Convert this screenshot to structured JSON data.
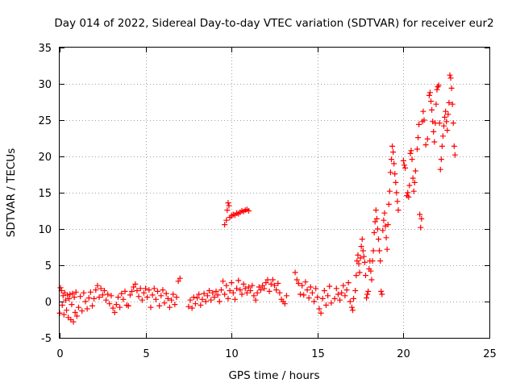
{
  "chart_data": {
    "type": "scatter",
    "title": "Day 014 of 2022, Sidereal Day-to-day VTEC variation (SDTVAR) for receiver eur2",
    "xlabel": "GPS time / hours",
    "ylabel": "SDTVAR / TECUs",
    "xlim": [
      0,
      25
    ],
    "ylim": [
      -5,
      35
    ],
    "xticks": [
      0,
      5,
      10,
      15,
      20,
      25
    ],
    "yticks": [
      -5,
      0,
      5,
      10,
      15,
      20,
      25,
      30,
      35
    ],
    "grid": true,
    "marker": "+",
    "marker_color": "#ff0000",
    "series": [
      {
        "name": "SDTVAR",
        "points": [
          [
            0.0,
            -1.6
          ],
          [
            0.05,
            1.9
          ],
          [
            0.1,
            1.5
          ],
          [
            0.15,
            -0.5
          ],
          [
            0.2,
            0.8
          ],
          [
            0.25,
            -1.8
          ],
          [
            0.3,
            1.2
          ],
          [
            0.35,
            0.2
          ],
          [
            0.4,
            -1.2
          ],
          [
            0.45,
            0.9
          ],
          [
            0.5,
            -2.2
          ],
          [
            0.55,
            0.4
          ],
          [
            0.6,
            1.0
          ],
          [
            0.65,
            -2.5
          ],
          [
            0.7,
            -0.4
          ],
          [
            0.75,
            1.1
          ],
          [
            0.8,
            -2.8
          ],
          [
            0.85,
            0.6
          ],
          [
            0.9,
            -1.5
          ],
          [
            0.95,
            1.3
          ],
          [
            1.0,
            -2.0
          ],
          [
            1.1,
            -0.8
          ],
          [
            1.2,
            0.7
          ],
          [
            1.3,
            -1.3
          ],
          [
            1.4,
            1.2
          ],
          [
            1.5,
            0.0
          ],
          [
            1.6,
            -1.0
          ],
          [
            1.7,
            0.5
          ],
          [
            1.8,
            1.3
          ],
          [
            1.9,
            -0.6
          ],
          [
            2.0,
            0.4
          ],
          [
            2.1,
            1.6
          ],
          [
            2.2,
            2.2
          ],
          [
            2.3,
            0.6
          ],
          [
            2.4,
            1.8
          ],
          [
            2.5,
            0.9
          ],
          [
            2.6,
            1.5
          ],
          [
            2.7,
            0.2
          ],
          [
            2.8,
            1.0
          ],
          [
            2.9,
            -0.3
          ],
          [
            3.0,
            0.8
          ],
          [
            3.1,
            -0.9
          ],
          [
            3.2,
            -1.5
          ],
          [
            3.3,
            -0.4
          ],
          [
            3.4,
            0.6
          ],
          [
            3.5,
            -0.8
          ],
          [
            3.6,
            1.1
          ],
          [
            3.7,
            0.3
          ],
          [
            3.8,
            1.4
          ],
          [
            3.9,
            -0.5
          ],
          [
            4.0,
            -0.6
          ],
          [
            4.1,
            0.9
          ],
          [
            4.2,
            1.4
          ],
          [
            4.3,
            2.0
          ],
          [
            4.4,
            2.4
          ],
          [
            4.5,
            1.5
          ],
          [
            4.6,
            0.7
          ],
          [
            4.7,
            1.8
          ],
          [
            4.8,
            0.2
          ],
          [
            4.9,
            1.2
          ],
          [
            5.0,
            1.8
          ],
          [
            5.1,
            0.6
          ],
          [
            5.2,
            1.6
          ],
          [
            5.3,
            -0.8
          ],
          [
            5.4,
            0.9
          ],
          [
            5.5,
            1.8
          ],
          [
            5.6,
            0.3
          ],
          [
            5.7,
            1.4
          ],
          [
            5.8,
            -0.6
          ],
          [
            5.9,
            0.8
          ],
          [
            6.0,
            1.6
          ],
          [
            6.1,
            -0.2
          ],
          [
            6.2,
            1.1
          ],
          [
            6.3,
            0.4
          ],
          [
            6.4,
            -0.8
          ],
          [
            6.5,
            0.2
          ],
          [
            6.6,
            1.0
          ],
          [
            6.7,
            -0.4
          ],
          [
            6.8,
            0.6
          ],
          [
            6.9,
            2.8
          ],
          [
            7.0,
            3.2
          ],
          [
            7.5,
            -0.7
          ],
          [
            7.6,
            0.2
          ],
          [
            7.7,
            -0.9
          ],
          [
            7.8,
            0.6
          ],
          [
            7.9,
            -0.3
          ],
          [
            8.0,
            0.5
          ],
          [
            8.1,
            1.0
          ],
          [
            8.2,
            -0.5
          ],
          [
            8.3,
            0.3
          ],
          [
            8.4,
            1.1
          ],
          [
            8.5,
            0.0
          ],
          [
            8.6,
            0.8
          ],
          [
            8.7,
            1.5
          ],
          [
            8.8,
            0.2
          ],
          [
            8.9,
            1.2
          ],
          [
            9.0,
            0.6
          ],
          [
            9.1,
            1.4
          ],
          [
            9.2,
            0.9
          ],
          [
            9.3,
            0.0
          ],
          [
            9.4,
            1.6
          ],
          [
            9.5,
            2.8
          ],
          [
            9.6,
            1.0
          ],
          [
            9.7,
            2.2
          ],
          [
            9.8,
            0.4
          ],
          [
            9.9,
            1.5
          ],
          [
            10.0,
            2.6
          ],
          [
            10.1,
            1.2
          ],
          [
            10.2,
            0.3
          ],
          [
            10.3,
            1.8
          ],
          [
            10.4,
            2.9
          ],
          [
            10.5,
            1.6
          ],
          [
            10.6,
            1.0
          ],
          [
            10.7,
            2.4
          ],
          [
            10.8,
            1.8
          ],
          [
            10.9,
            1.2
          ],
          [
            11.0,
            2.0
          ],
          [
            11.1,
            1.5
          ],
          [
            11.2,
            2.2
          ],
          [
            11.3,
            0.8
          ],
          [
            11.4,
            0.2
          ],
          [
            11.5,
            1.2
          ],
          [
            11.6,
            2.0
          ],
          [
            11.7,
            1.6
          ],
          [
            11.8,
            2.2
          ],
          [
            11.9,
            1.8
          ],
          [
            12.0,
            2.6
          ],
          [
            12.1,
            3.0
          ],
          [
            12.2,
            1.4
          ],
          [
            12.3,
            2.4
          ],
          [
            12.4,
            3.0
          ],
          [
            12.5,
            2.2
          ],
          [
            12.6,
            1.6
          ],
          [
            12.7,
            2.5
          ],
          [
            12.8,
            1.2
          ],
          [
            12.9,
            0.3
          ],
          [
            13.0,
            0.0
          ],
          [
            13.1,
            -0.3
          ],
          [
            13.2,
            0.8
          ],
          [
            9.6,
            10.6
          ],
          [
            9.7,
            11.2
          ],
          [
            9.75,
            12.6
          ],
          [
            9.8,
            13.6
          ],
          [
            9.85,
            13.2
          ],
          [
            9.9,
            11.6
          ],
          [
            10.0,
            11.8
          ],
          [
            10.1,
            12.0
          ],
          [
            10.2,
            11.9
          ],
          [
            10.3,
            12.2
          ],
          [
            10.4,
            12.1
          ],
          [
            10.5,
            12.3
          ],
          [
            10.6,
            12.5
          ],
          [
            10.7,
            12.4
          ],
          [
            10.8,
            12.6
          ],
          [
            10.9,
            12.7
          ],
          [
            11.0,
            12.5
          ],
          [
            13.7,
            4.0
          ],
          [
            13.8,
            3.0
          ],
          [
            13.9,
            2.5
          ],
          [
            14.0,
            1.0
          ],
          [
            14.1,
            2.2
          ],
          [
            14.2,
            0.9
          ],
          [
            14.3,
            2.7
          ],
          [
            14.4,
            1.6
          ],
          [
            14.5,
            0.5
          ],
          [
            14.6,
            2.0
          ],
          [
            14.7,
            1.2
          ],
          [
            14.8,
            0.0
          ],
          [
            14.9,
            1.8
          ],
          [
            15.0,
            0.6
          ],
          [
            15.1,
            -1.0
          ],
          [
            15.2,
            -1.6
          ],
          [
            15.3,
            0.4
          ],
          [
            15.4,
            1.5
          ],
          [
            15.5,
            -0.5
          ],
          [
            15.6,
            0.8
          ],
          [
            15.7,
            2.1
          ],
          [
            15.8,
            -0.2
          ],
          [
            16.0,
            0.4
          ],
          [
            16.1,
            1.8
          ],
          [
            16.2,
            1.0
          ],
          [
            16.3,
            0.2
          ],
          [
            16.4,
            1.2
          ],
          [
            16.5,
            2.2
          ],
          [
            16.6,
            0.8
          ],
          [
            16.7,
            1.6
          ],
          [
            16.8,
            2.6
          ],
          [
            16.9,
            0.0
          ],
          [
            17.0,
            -0.8
          ],
          [
            17.05,
            -1.2
          ],
          [
            17.1,
            0.4
          ],
          [
            17.2,
            1.5
          ],
          [
            17.25,
            3.6
          ],
          [
            17.3,
            5.6
          ],
          [
            17.35,
            6.4
          ],
          [
            17.4,
            5.2
          ],
          [
            17.45,
            4.0
          ],
          [
            17.5,
            6.0
          ],
          [
            17.55,
            7.6
          ],
          [
            17.6,
            8.6
          ],
          [
            17.65,
            7.0
          ],
          [
            17.7,
            6.2
          ],
          [
            17.75,
            5.4
          ],
          [
            17.8,
            3.6
          ],
          [
            17.85,
            0.5
          ],
          [
            17.9,
            1.0
          ],
          [
            17.95,
            1.4
          ],
          [
            18.0,
            4.5
          ],
          [
            18.05,
            5.6
          ],
          [
            18.1,
            4.2
          ],
          [
            18.15,
            3.0
          ],
          [
            18.2,
            5.6
          ],
          [
            18.25,
            7.0
          ],
          [
            18.3,
            9.5
          ],
          [
            18.35,
            11.0
          ],
          [
            18.4,
            12.6
          ],
          [
            18.45,
            11.4
          ],
          [
            18.5,
            10.0
          ],
          [
            18.55,
            8.6
          ],
          [
            18.6,
            7.0
          ],
          [
            18.65,
            5.6
          ],
          [
            18.7,
            1.4
          ],
          [
            18.75,
            1.0
          ],
          [
            18.8,
            9.8
          ],
          [
            18.85,
            11.2
          ],
          [
            18.9,
            12.2
          ],
          [
            18.95,
            10.4
          ],
          [
            19.0,
            8.8
          ],
          [
            19.05,
            7.2
          ],
          [
            19.1,
            10.6
          ],
          [
            19.15,
            13.4
          ],
          [
            19.2,
            15.2
          ],
          [
            19.25,
            17.8
          ],
          [
            19.3,
            19.6
          ],
          [
            19.35,
            21.4
          ],
          [
            19.4,
            20.6
          ],
          [
            19.45,
            19.0
          ],
          [
            19.5,
            17.6
          ],
          [
            19.55,
            16.4
          ],
          [
            19.6,
            15.0
          ],
          [
            19.65,
            13.8
          ],
          [
            19.7,
            12.6
          ],
          [
            20.0,
            19.4
          ],
          [
            20.05,
            18.8
          ],
          [
            20.1,
            18.4
          ],
          [
            20.2,
            14.6
          ],
          [
            20.25,
            15.0
          ],
          [
            20.3,
            14.4
          ],
          [
            20.35,
            16.0
          ],
          [
            20.4,
            20.4
          ],
          [
            20.45,
            20.8
          ],
          [
            20.5,
            19.6
          ],
          [
            20.55,
            17.0
          ],
          [
            20.6,
            15.2
          ],
          [
            20.65,
            16.4
          ],
          [
            20.7,
            18.0
          ],
          [
            20.8,
            21.0
          ],
          [
            20.85,
            22.6
          ],
          [
            20.9,
            24.4
          ],
          [
            20.95,
            12.0
          ],
          [
            21.0,
            10.2
          ],
          [
            21.05,
            11.4
          ],
          [
            21.1,
            24.8
          ],
          [
            21.15,
            26.2
          ],
          [
            21.2,
            25.0
          ],
          [
            21.3,
            21.6
          ],
          [
            21.4,
            22.4
          ],
          [
            21.5,
            28.4
          ],
          [
            21.55,
            28.8
          ],
          [
            21.6,
            27.6
          ],
          [
            21.65,
            26.4
          ],
          [
            21.7,
            24.8
          ],
          [
            21.75,
            23.4
          ],
          [
            21.8,
            22.0
          ],
          [
            21.85,
            24.6
          ],
          [
            21.9,
            27.2
          ],
          [
            21.95,
            29.2
          ],
          [
            22.0,
            29.6
          ],
          [
            22.05,
            29.8
          ],
          [
            22.1,
            24.6
          ],
          [
            22.15,
            18.2
          ],
          [
            22.2,
            19.6
          ],
          [
            22.25,
            21.4
          ],
          [
            22.3,
            22.8
          ],
          [
            22.35,
            24.2
          ],
          [
            22.4,
            25.4
          ],
          [
            22.45,
            26.2
          ],
          [
            22.5,
            24.8
          ],
          [
            22.55,
            23.6
          ],
          [
            22.6,
            25.8
          ],
          [
            22.65,
            27.4
          ],
          [
            22.7,
            31.2
          ],
          [
            22.75,
            30.8
          ],
          [
            22.8,
            29.4
          ],
          [
            22.85,
            27.2
          ],
          [
            22.9,
            24.6
          ],
          [
            22.95,
            21.4
          ],
          [
            23.0,
            20.2
          ]
        ]
      }
    ]
  }
}
